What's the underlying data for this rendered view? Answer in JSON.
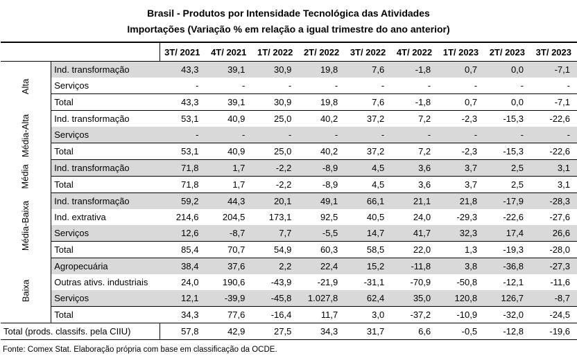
{
  "title_line1": "Brasil - Produtos por Intensidade Tecnológica das Atividades",
  "title_line2": "Importações (Variação % em relação a igual trimestre do ano anterior)",
  "columns": [
    "3T/ 2021",
    "4T/ 2021",
    "1T/ 2022",
    "2T/ 2022",
    "3T/ 2022",
    "4T/ 2022",
    "1T/ 2023",
    "2T/ 2023",
    "3T/ 2023"
  ],
  "groups": [
    {
      "name": "Alta",
      "rows": [
        {
          "label": "Ind. transformação",
          "shade": true,
          "values": [
            "43,3",
            "39,1",
            "30,9",
            "19,8",
            "7,6",
            "-1,8",
            "0,7",
            "0,0",
            "-7,1"
          ]
        },
        {
          "label": "Serviços",
          "shade": false,
          "values": [
            "-",
            "-",
            "-",
            "-",
            "-",
            "-",
            "-",
            "-",
            "-"
          ]
        },
        {
          "label": "Total",
          "shade": false,
          "total": true,
          "values": [
            "43,3",
            "39,1",
            "30,9",
            "19,8",
            "7,6",
            "-1,8",
            "0,7",
            "0,0",
            "-7,1"
          ]
        }
      ]
    },
    {
      "name": "Média-Alta",
      "rows": [
        {
          "label": "Ind. transformação",
          "shade": false,
          "values": [
            "53,1",
            "40,9",
            "25,0",
            "40,2",
            "37,2",
            "7,2",
            "-2,3",
            "-15,3",
            "-22,6"
          ]
        },
        {
          "label": "Serviços",
          "shade": true,
          "values": [
            "-",
            "-",
            "-",
            "-",
            "-",
            "-",
            "-",
            "-",
            "-"
          ]
        },
        {
          "label": "Total",
          "shade": false,
          "total": true,
          "values": [
            "53,1",
            "40,9",
            "25,0",
            "40,2",
            "37,2",
            "7,2",
            "-2,3",
            "-15,3",
            "-22,6"
          ]
        }
      ]
    },
    {
      "name": "Média",
      "rows": [
        {
          "label": "Ind. transformação",
          "shade": true,
          "values": [
            "71,8",
            "1,7",
            "-2,2",
            "-8,9",
            "4,5",
            "3,6",
            "3,7",
            "2,5",
            "3,1"
          ]
        },
        {
          "label": "Total",
          "shade": false,
          "total": true,
          "values": [
            "71,8",
            "1,7",
            "-2,2",
            "-8,9",
            "4,5",
            "3,6",
            "3,7",
            "2,5",
            "3,1"
          ]
        }
      ]
    },
    {
      "name": "Média-Baixa",
      "rows": [
        {
          "label": "Ind. transformação",
          "shade": true,
          "values": [
            "59,2",
            "44,3",
            "20,1",
            "49,1",
            "66,1",
            "21,1",
            "21,8",
            "-17,9",
            "-28,3"
          ]
        },
        {
          "label": "Ind. extrativa",
          "shade": false,
          "values": [
            "214,6",
            "204,5",
            "173,1",
            "92,5",
            "40,5",
            "24,0",
            "-29,3",
            "-22,6",
            "-27,6"
          ]
        },
        {
          "label": "Serviços",
          "shade": true,
          "values": [
            "12,6",
            "-8,7",
            "7,7",
            "-5,5",
            "14,7",
            "41,7",
            "32,3",
            "17,4",
            "26,6"
          ]
        },
        {
          "label": "Total",
          "shade": false,
          "total": true,
          "values": [
            "85,4",
            "70,7",
            "54,9",
            "60,3",
            "58,5",
            "22,0",
            "1,3",
            "-19,3",
            "-28,0"
          ]
        }
      ]
    },
    {
      "name": "Baixa",
      "rows": [
        {
          "label": "Agropecuária",
          "shade": true,
          "values": [
            "38,4",
            "37,6",
            "2,2",
            "22,4",
            "15,2",
            "-11,8",
            "3,8",
            "-36,8",
            "-27,3"
          ]
        },
        {
          "label": "Outras ativs. industriais",
          "shade": false,
          "values": [
            "24,0",
            "190,6",
            "-43,9",
            "-21,9",
            "-31,1",
            "-70,9",
            "-50,8",
            "-12,1",
            "-11,6"
          ]
        },
        {
          "label": "Serviços",
          "shade": true,
          "values": [
            "12,1",
            "-39,9",
            "-45,8",
            "1.027,8",
            "62,4",
            "35,0",
            "120,8",
            "126,7",
            "-8,7"
          ]
        },
        {
          "label": "Total",
          "shade": false,
          "total": true,
          "values": [
            "34,3",
            "77,6",
            "-16,4",
            "11,7",
            "3,0",
            "-37,2",
            "-10,9",
            "-32,0",
            "-24,5"
          ]
        }
      ]
    }
  ],
  "grand_total": {
    "label": "Total (prods. classifs. pela CIIU)",
    "values": [
      "57,8",
      "42,9",
      "27,5",
      "34,3",
      "31,7",
      "6,6",
      "-0,5",
      "-12,8",
      "-19,6"
    ]
  },
  "source": "Fonte: Comex Stat. Elaboração própria com base em classificação da OCDE."
}
